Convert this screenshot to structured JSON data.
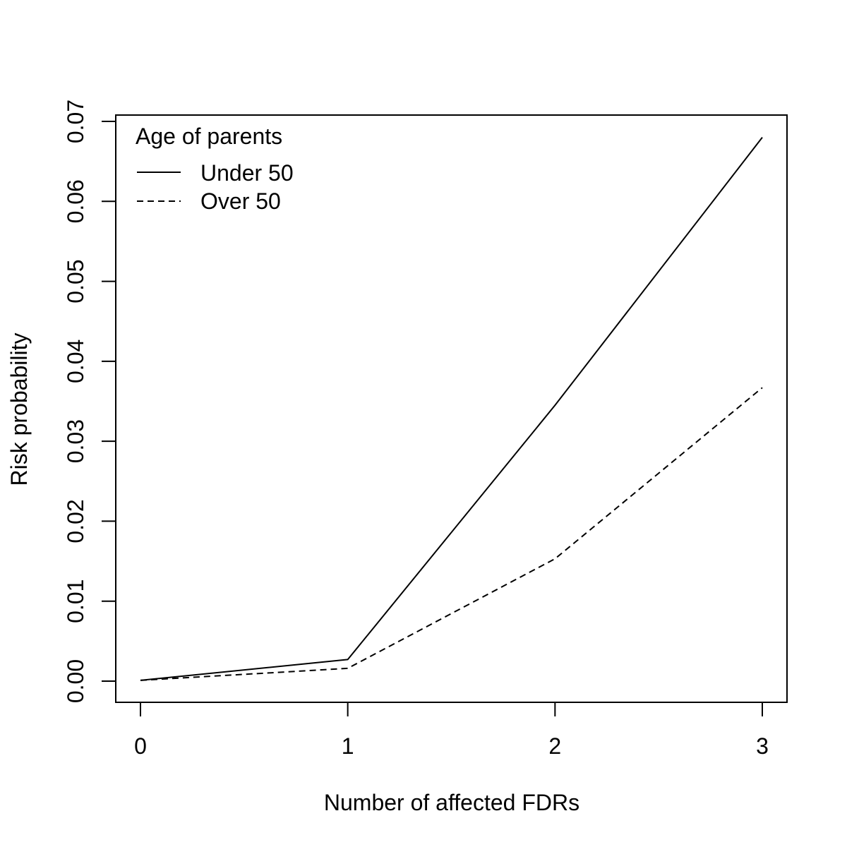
{
  "chart_data": {
    "type": "line",
    "title": "",
    "xlabel": "Number of affected FDRs",
    "ylabel": "Risk probability",
    "x": [
      0,
      1,
      2,
      3
    ],
    "xlim": [
      0,
      3
    ],
    "ylim": [
      0,
      0.07
    ],
    "xticks": [
      "0",
      "1",
      "2",
      "3"
    ],
    "yticks": [
      "0.00",
      "0.01",
      "0.02",
      "0.03",
      "0.04",
      "0.05",
      "0.06",
      "0.07"
    ],
    "grid": false,
    "legend": {
      "title": "Age of parents",
      "position": "top-left"
    },
    "series": [
      {
        "name": "Under 50",
        "line_style": "solid",
        "values": [
          0.0001,
          0.0027,
          0.0345,
          0.068
        ]
      },
      {
        "name": "Over 50",
        "line_style": "dashed",
        "values": [
          0.0001,
          0.0016,
          0.0153,
          0.0367
        ]
      }
    ]
  }
}
